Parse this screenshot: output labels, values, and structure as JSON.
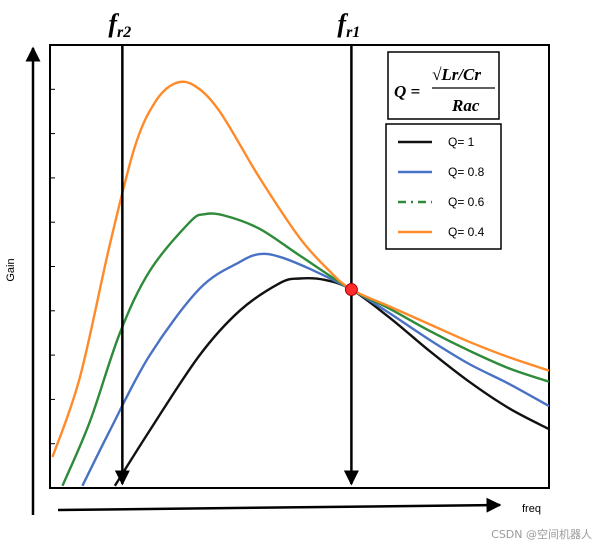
{
  "chart_data": {
    "type": "line",
    "xlabel": "freq",
    "ylabel": "Gain",
    "xlim": [
      0,
      10
    ],
    "ylim": [
      0,
      10
    ],
    "grid": false,
    "legend_position": "top-right",
    "formula": {
      "lhs": "Q =",
      "numerator": "√Lr/Cr",
      "denominator": "Rac"
    },
    "markers": [
      {
        "label_base": "f",
        "label_sub": "r2",
        "x": 1.45
      },
      {
        "label_base": "f",
        "label_sub": "r1",
        "x": 6.04
      }
    ],
    "intersection": {
      "x": 6.04,
      "y": 4.48,
      "color": "#ff2a2a"
    },
    "series": [
      {
        "name": "Q= 1",
        "color": "#111111",
        "dash": "solid",
        "points": [
          [
            1.3,
            0.05
          ],
          [
            2.0,
            1.3
          ],
          [
            3.0,
            3.0
          ],
          [
            3.8,
            4.0
          ],
          [
            4.6,
            4.62
          ],
          [
            5.0,
            4.73
          ],
          [
            5.5,
            4.7
          ],
          [
            6.04,
            4.48
          ],
          [
            6.8,
            3.85
          ],
          [
            7.6,
            3.1
          ],
          [
            8.4,
            2.4
          ],
          [
            9.2,
            1.8
          ],
          [
            10.0,
            1.33
          ]
        ]
      },
      {
        "name": "Q= 0.8",
        "color": "#4a72c4",
        "dash": "solid",
        "points": [
          [
            0.65,
            0.05
          ],
          [
            1.2,
            1.3
          ],
          [
            2.0,
            3.0
          ],
          [
            3.0,
            4.5
          ],
          [
            3.8,
            5.1
          ],
          [
            4.2,
            5.28
          ],
          [
            4.6,
            5.22
          ],
          [
            5.2,
            4.95
          ],
          [
            6.04,
            4.48
          ],
          [
            6.8,
            3.95
          ],
          [
            7.6,
            3.35
          ],
          [
            8.4,
            2.8
          ],
          [
            9.2,
            2.35
          ],
          [
            10.0,
            1.85
          ]
        ]
      },
      {
        "name": "Q= 0.6",
        "color": "#2e8b3a",
        "dash": "dash-dot",
        "points": [
          [
            0.25,
            0.05
          ],
          [
            0.8,
            1.5
          ],
          [
            1.4,
            3.5
          ],
          [
            2.0,
            4.9
          ],
          [
            2.8,
            6.0
          ],
          [
            3.1,
            6.18
          ],
          [
            3.5,
            6.15
          ],
          [
            4.2,
            5.85
          ],
          [
            5.0,
            5.25
          ],
          [
            6.04,
            4.48
          ],
          [
            6.8,
            4.05
          ],
          [
            7.6,
            3.55
          ],
          [
            8.4,
            3.1
          ],
          [
            9.2,
            2.7
          ],
          [
            10.0,
            2.4
          ]
        ]
      },
      {
        "name": "Q= 0.4",
        "color": "#ff8a2a",
        "dash": "solid",
        "points": [
          [
            0.05,
            0.7
          ],
          [
            0.6,
            2.5
          ],
          [
            1.2,
            5.5
          ],
          [
            1.7,
            7.7
          ],
          [
            2.1,
            8.7
          ],
          [
            2.5,
            9.13
          ],
          [
            2.9,
            9.08
          ],
          [
            3.4,
            8.5
          ],
          [
            4.2,
            7.0
          ],
          [
            5.0,
            5.65
          ],
          [
            5.6,
            4.9
          ],
          [
            6.04,
            4.48
          ],
          [
            6.8,
            4.1
          ],
          [
            7.6,
            3.7
          ],
          [
            8.4,
            3.3
          ],
          [
            9.2,
            2.95
          ],
          [
            10.0,
            2.65
          ]
        ]
      }
    ]
  },
  "watermark": "CSDN @空间机器人"
}
